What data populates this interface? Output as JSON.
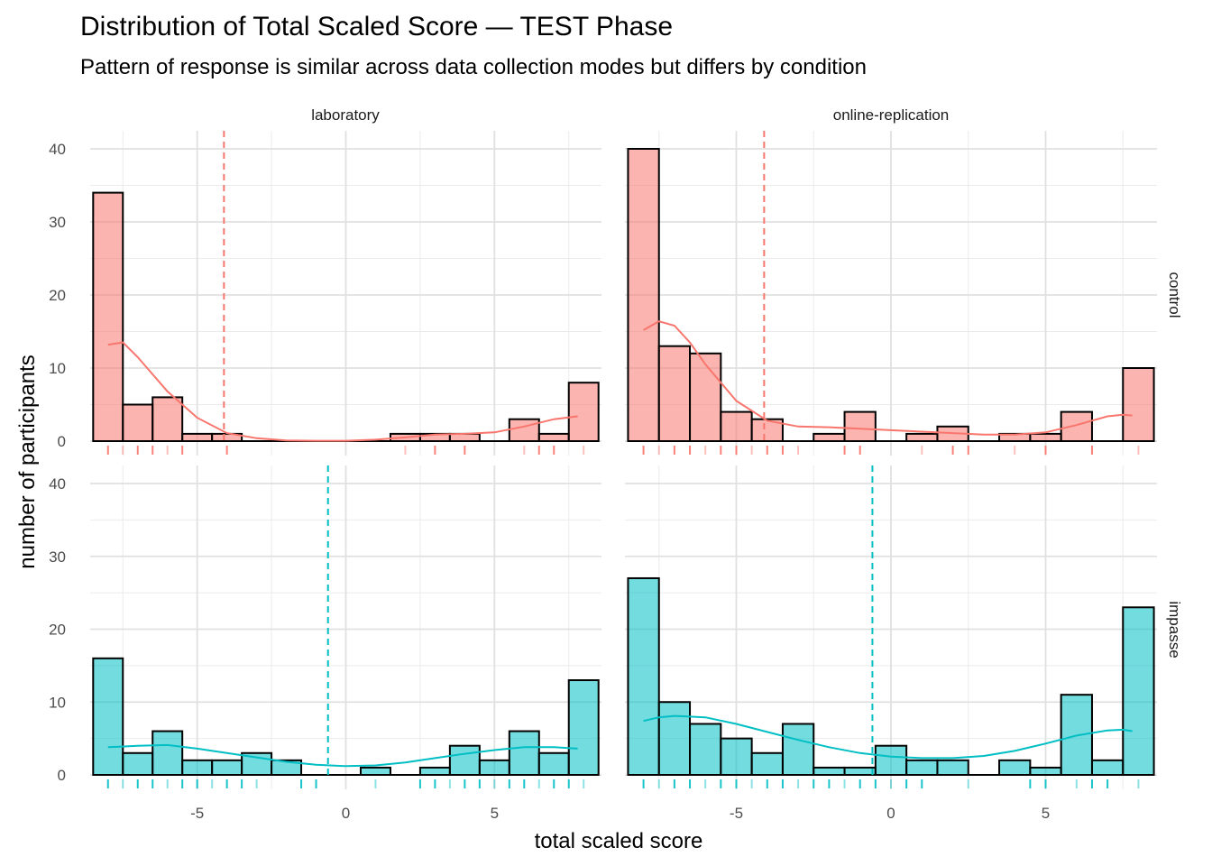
{
  "chart_data": {
    "type": "bar",
    "title": "Distribution of Total Scaled Score — TEST Phase",
    "subtitle": "Pattern of response is similar across data collection modes but differs by condition",
    "xlabel": "total scaled score",
    "ylabel": "number of participants",
    "xlim": [
      -8.6,
      8.6
    ],
    "ylim": [
      0,
      40
    ],
    "x_ticks": [
      -5,
      0,
      5
    ],
    "x_tick_labels": [
      "-5",
      "0",
      "5"
    ],
    "y_ticks": [
      0,
      10,
      20,
      30,
      40
    ],
    "y_tick_labels": [
      "0",
      "10",
      "20",
      "30",
      "40"
    ],
    "bin_width": 1,
    "bin_centers": [
      -8,
      -7,
      -6,
      -5,
      -4,
      -3,
      -2,
      -1,
      0,
      1,
      2,
      3,
      4,
      5,
      6,
      7,
      8
    ],
    "grid": true,
    "columns": [
      "laboratory",
      "online-replication"
    ],
    "rows": [
      "control",
      "impasse"
    ],
    "colors": {
      "control": "#F8766D",
      "impasse": "#00BFC4",
      "bar_outline": "#000000"
    },
    "panels": [
      {
        "column": "laboratory",
        "row": "control",
        "counts": [
          34,
          5,
          6,
          1,
          1,
          0,
          0,
          0,
          0,
          0,
          1,
          1,
          1,
          0,
          3,
          1,
          8
        ],
        "mean": -4.1,
        "density": [
          [
            -8,
            13.2
          ],
          [
            -7.5,
            13.5
          ],
          [
            -7,
            11.5
          ],
          [
            -6,
            6.8
          ],
          [
            -5,
            3.2
          ],
          [
            -4,
            1.1
          ],
          [
            -3,
            0.4
          ],
          [
            -2,
            0.1
          ],
          [
            -1,
            0.05
          ],
          [
            0,
            0.05
          ],
          [
            1,
            0.2
          ],
          [
            2,
            0.5
          ],
          [
            3,
            0.9
          ],
          [
            4,
            1.0
          ],
          [
            5,
            1.2
          ],
          [
            6,
            2.0
          ],
          [
            7,
            3.0
          ],
          [
            7.8,
            3.4
          ]
        ],
        "rug": [
          -8,
          -7.5,
          -7,
          -6.5,
          -6,
          -5.5,
          -4,
          2,
          3,
          4,
          6,
          6.5,
          7,
          8
        ]
      },
      {
        "column": "online-replication",
        "row": "control",
        "counts": [
          40,
          13,
          12,
          4,
          3,
          0,
          1,
          4,
          0,
          1,
          2,
          0,
          1,
          1,
          4,
          0,
          10
        ],
        "mean": -4.1,
        "density": [
          [
            -8,
            15.2
          ],
          [
            -7.5,
            16.4
          ],
          [
            -7,
            15.8
          ],
          [
            -6.5,
            13.5
          ],
          [
            -6,
            10.5
          ],
          [
            -5,
            5.5
          ],
          [
            -4,
            2.8
          ],
          [
            -3,
            2.0
          ],
          [
            -2,
            1.9
          ],
          [
            -1,
            1.7
          ],
          [
            0,
            1.5
          ],
          [
            1,
            1.3
          ],
          [
            2,
            1.1
          ],
          [
            3,
            0.9
          ],
          [
            4,
            0.9
          ],
          [
            5,
            1.2
          ],
          [
            6,
            2.2
          ],
          [
            7,
            3.4
          ],
          [
            7.5,
            3.6
          ],
          [
            7.8,
            3.5
          ]
        ],
        "rug": [
          -8,
          -7.5,
          -7,
          -6.5,
          -6,
          -5.5,
          -5,
          -4.5,
          -4,
          -3.5,
          -3,
          -1.5,
          -1,
          1,
          2,
          2.5,
          4,
          5,
          6.5,
          8
        ]
      },
      {
        "column": "laboratory",
        "row": "impasse",
        "counts": [
          16,
          3,
          6,
          2,
          2,
          3,
          2,
          0,
          0,
          1,
          0,
          1,
          4,
          2,
          6,
          3,
          13
        ],
        "mean": -0.6,
        "density": [
          [
            -8,
            3.8
          ],
          [
            -7,
            4.0
          ],
          [
            -6,
            4.1
          ],
          [
            -5,
            3.6
          ],
          [
            -4,
            3.0
          ],
          [
            -3,
            2.4
          ],
          [
            -2,
            1.8
          ],
          [
            -1,
            1.4
          ],
          [
            0,
            1.2
          ],
          [
            1,
            1.3
          ],
          [
            2,
            1.7
          ],
          [
            3,
            2.3
          ],
          [
            4,
            2.9
          ],
          [
            5,
            3.4
          ],
          [
            6,
            3.8
          ],
          [
            7,
            3.8
          ],
          [
            7.8,
            3.6
          ]
        ],
        "rug": [
          -8,
          -7.5,
          -7,
          -6.5,
          -6,
          -5.5,
          -5,
          -4.5,
          -4,
          -3.5,
          -3,
          -1.5,
          -1,
          1,
          2.5,
          3,
          3.5,
          4,
          4.5,
          5,
          5.5,
          6,
          6.5,
          7,
          7.5,
          8
        ]
      },
      {
        "column": "online-replication",
        "row": "impasse",
        "counts": [
          27,
          10,
          7,
          5,
          3,
          7,
          1,
          1,
          4,
          2,
          2,
          0,
          2,
          1,
          11,
          2,
          23
        ],
        "mean": -0.6,
        "density": [
          [
            -8,
            7.4
          ],
          [
            -7.5,
            7.9
          ],
          [
            -7,
            8.1
          ],
          [
            -6,
            7.9
          ],
          [
            -5,
            7.0
          ],
          [
            -4,
            5.9
          ],
          [
            -3,
            4.8
          ],
          [
            -2,
            3.8
          ],
          [
            -1,
            3.0
          ],
          [
            0,
            2.5
          ],
          [
            1,
            2.3
          ],
          [
            2,
            2.3
          ],
          [
            3,
            2.6
          ],
          [
            4,
            3.3
          ],
          [
            5,
            4.3
          ],
          [
            6,
            5.4
          ],
          [
            7,
            6.1
          ],
          [
            7.5,
            6.2
          ],
          [
            7.8,
            6.0
          ]
        ],
        "rug": [
          -8,
          -7.5,
          -7,
          -6.5,
          -6,
          -5.5,
          -5,
          -4.5,
          -4,
          -3.5,
          -3,
          -2.5,
          -2,
          -1.5,
          -1,
          -0.5,
          0,
          0.5,
          1,
          2.5,
          4.5,
          5,
          6,
          6.5,
          7,
          8
        ]
      }
    ]
  }
}
